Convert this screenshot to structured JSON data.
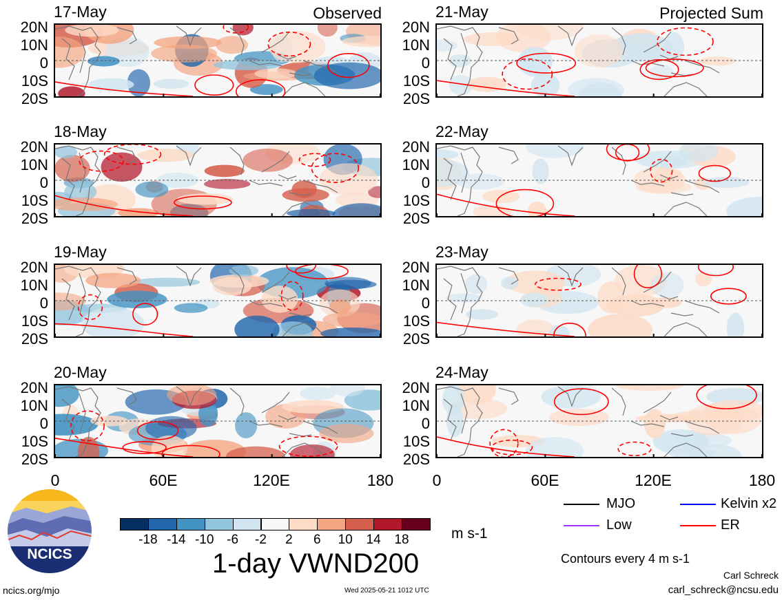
{
  "figure": {
    "title": "1-day VWND200",
    "units": "m s-1",
    "contour_note": "Contours every 4 m s-1",
    "timestamp": "Wed 2025-05-21 1012 UTC",
    "site": "ncics.org/mjo",
    "author": "Carl Schreck",
    "email": "carl_schreck@ncsu.edu",
    "logo_text": "NCICS"
  },
  "columns": {
    "left_title": "Observed",
    "right_title": "Projected Sum"
  },
  "lat_labels": [
    "20N",
    "10N",
    "0",
    "10S",
    "20S"
  ],
  "lon_labels": [
    "0",
    "60E",
    "120E",
    "180"
  ],
  "panels_left": [
    {
      "date": "17-May"
    },
    {
      "date": "18-May"
    },
    {
      "date": "19-May"
    },
    {
      "date": "20-May"
    }
  ],
  "panels_right": [
    {
      "date": "21-May"
    },
    {
      "date": "22-May"
    },
    {
      "date": "23-May"
    },
    {
      "date": "24-May"
    }
  ],
  "colorbar": {
    "ticks": [
      "-18",
      "-14",
      "-10",
      "-6",
      "-2",
      "2",
      "6",
      "10",
      "14",
      "18"
    ],
    "colors": [
      "#053061",
      "#2166ac",
      "#4393c3",
      "#92c5de",
      "#d1e5f0",
      "#f7f7f7",
      "#fddbc7",
      "#f4a582",
      "#d6604d",
      "#b2182b",
      "#67001f"
    ]
  },
  "legend": [
    {
      "label": "MJO",
      "color": "#000000"
    },
    {
      "label": "Kelvin x2",
      "color": "#0000ff"
    },
    {
      "label": "Low",
      "color": "#9b30ff"
    },
    {
      "label": "ER",
      "color": "#ff0000"
    }
  ]
}
